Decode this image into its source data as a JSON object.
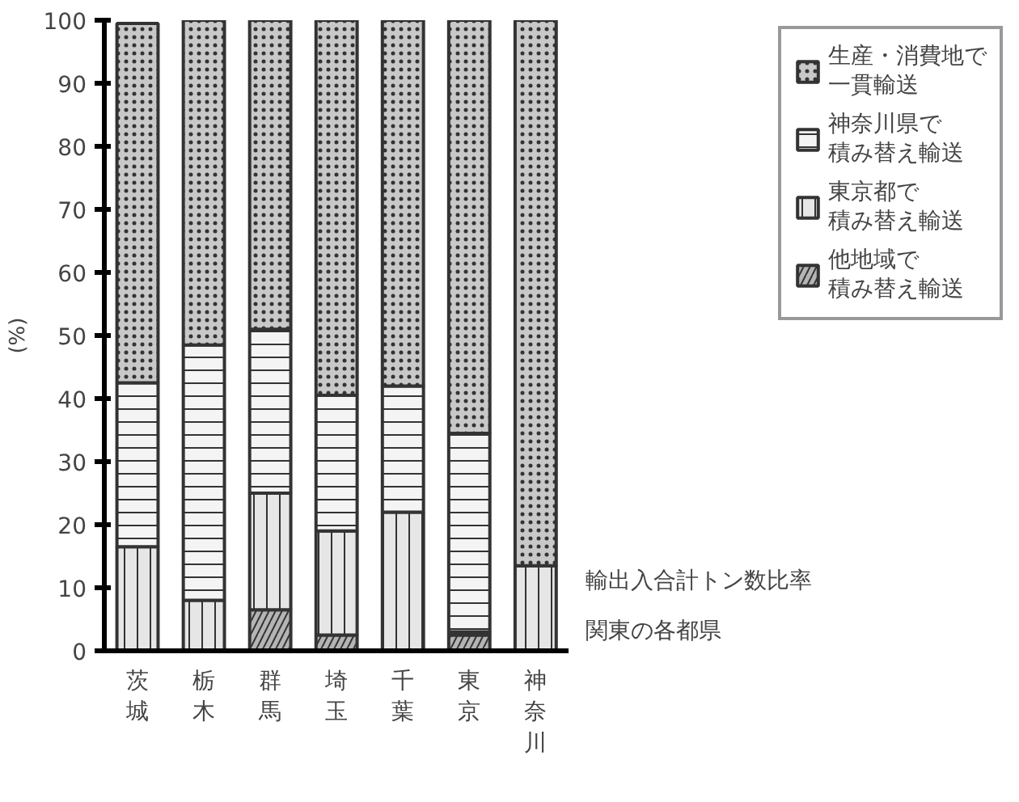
{
  "chart_data": {
    "type": "bar",
    "stacked": true,
    "ylabel": "(%)",
    "xlabel": "関東の各都県",
    "annotations": [
      "輸出入合計トン数比率"
    ],
    "categories": [
      "茨城",
      "栃木",
      "群馬",
      "埼玉",
      "千葉",
      "東京",
      "神奈川"
    ],
    "ylim": [
      0,
      100
    ],
    "yticks": [
      0,
      10,
      20,
      30,
      40,
      50,
      60,
      70,
      80,
      90,
      100
    ],
    "legend": "top right",
    "series": [
      {
        "name": "他地域で積み替え輸送",
        "color": "#b4b4b4",
        "values": [
          0,
          0,
          6.5,
          2.5,
          0,
          2.5,
          0
        ]
      },
      {
        "name": "東京都で積み替え輸送",
        "color": "#e6e6e6",
        "values": [
          16.5,
          8,
          18.5,
          16.5,
          22,
          0.5,
          13.5
        ]
      },
      {
        "name": "神奈川県で積み替え輸送",
        "color": "#f4f4f4",
        "values": [
          26,
          40.5,
          26,
          21.5,
          20,
          31.5,
          0
        ]
      },
      {
        "name": "生産・消費地で一貫輸送",
        "color": "#c8c8c8",
        "values": [
          57,
          51.5,
          49,
          59.5,
          58,
          65.5,
          86.5
        ]
      }
    ]
  }
}
